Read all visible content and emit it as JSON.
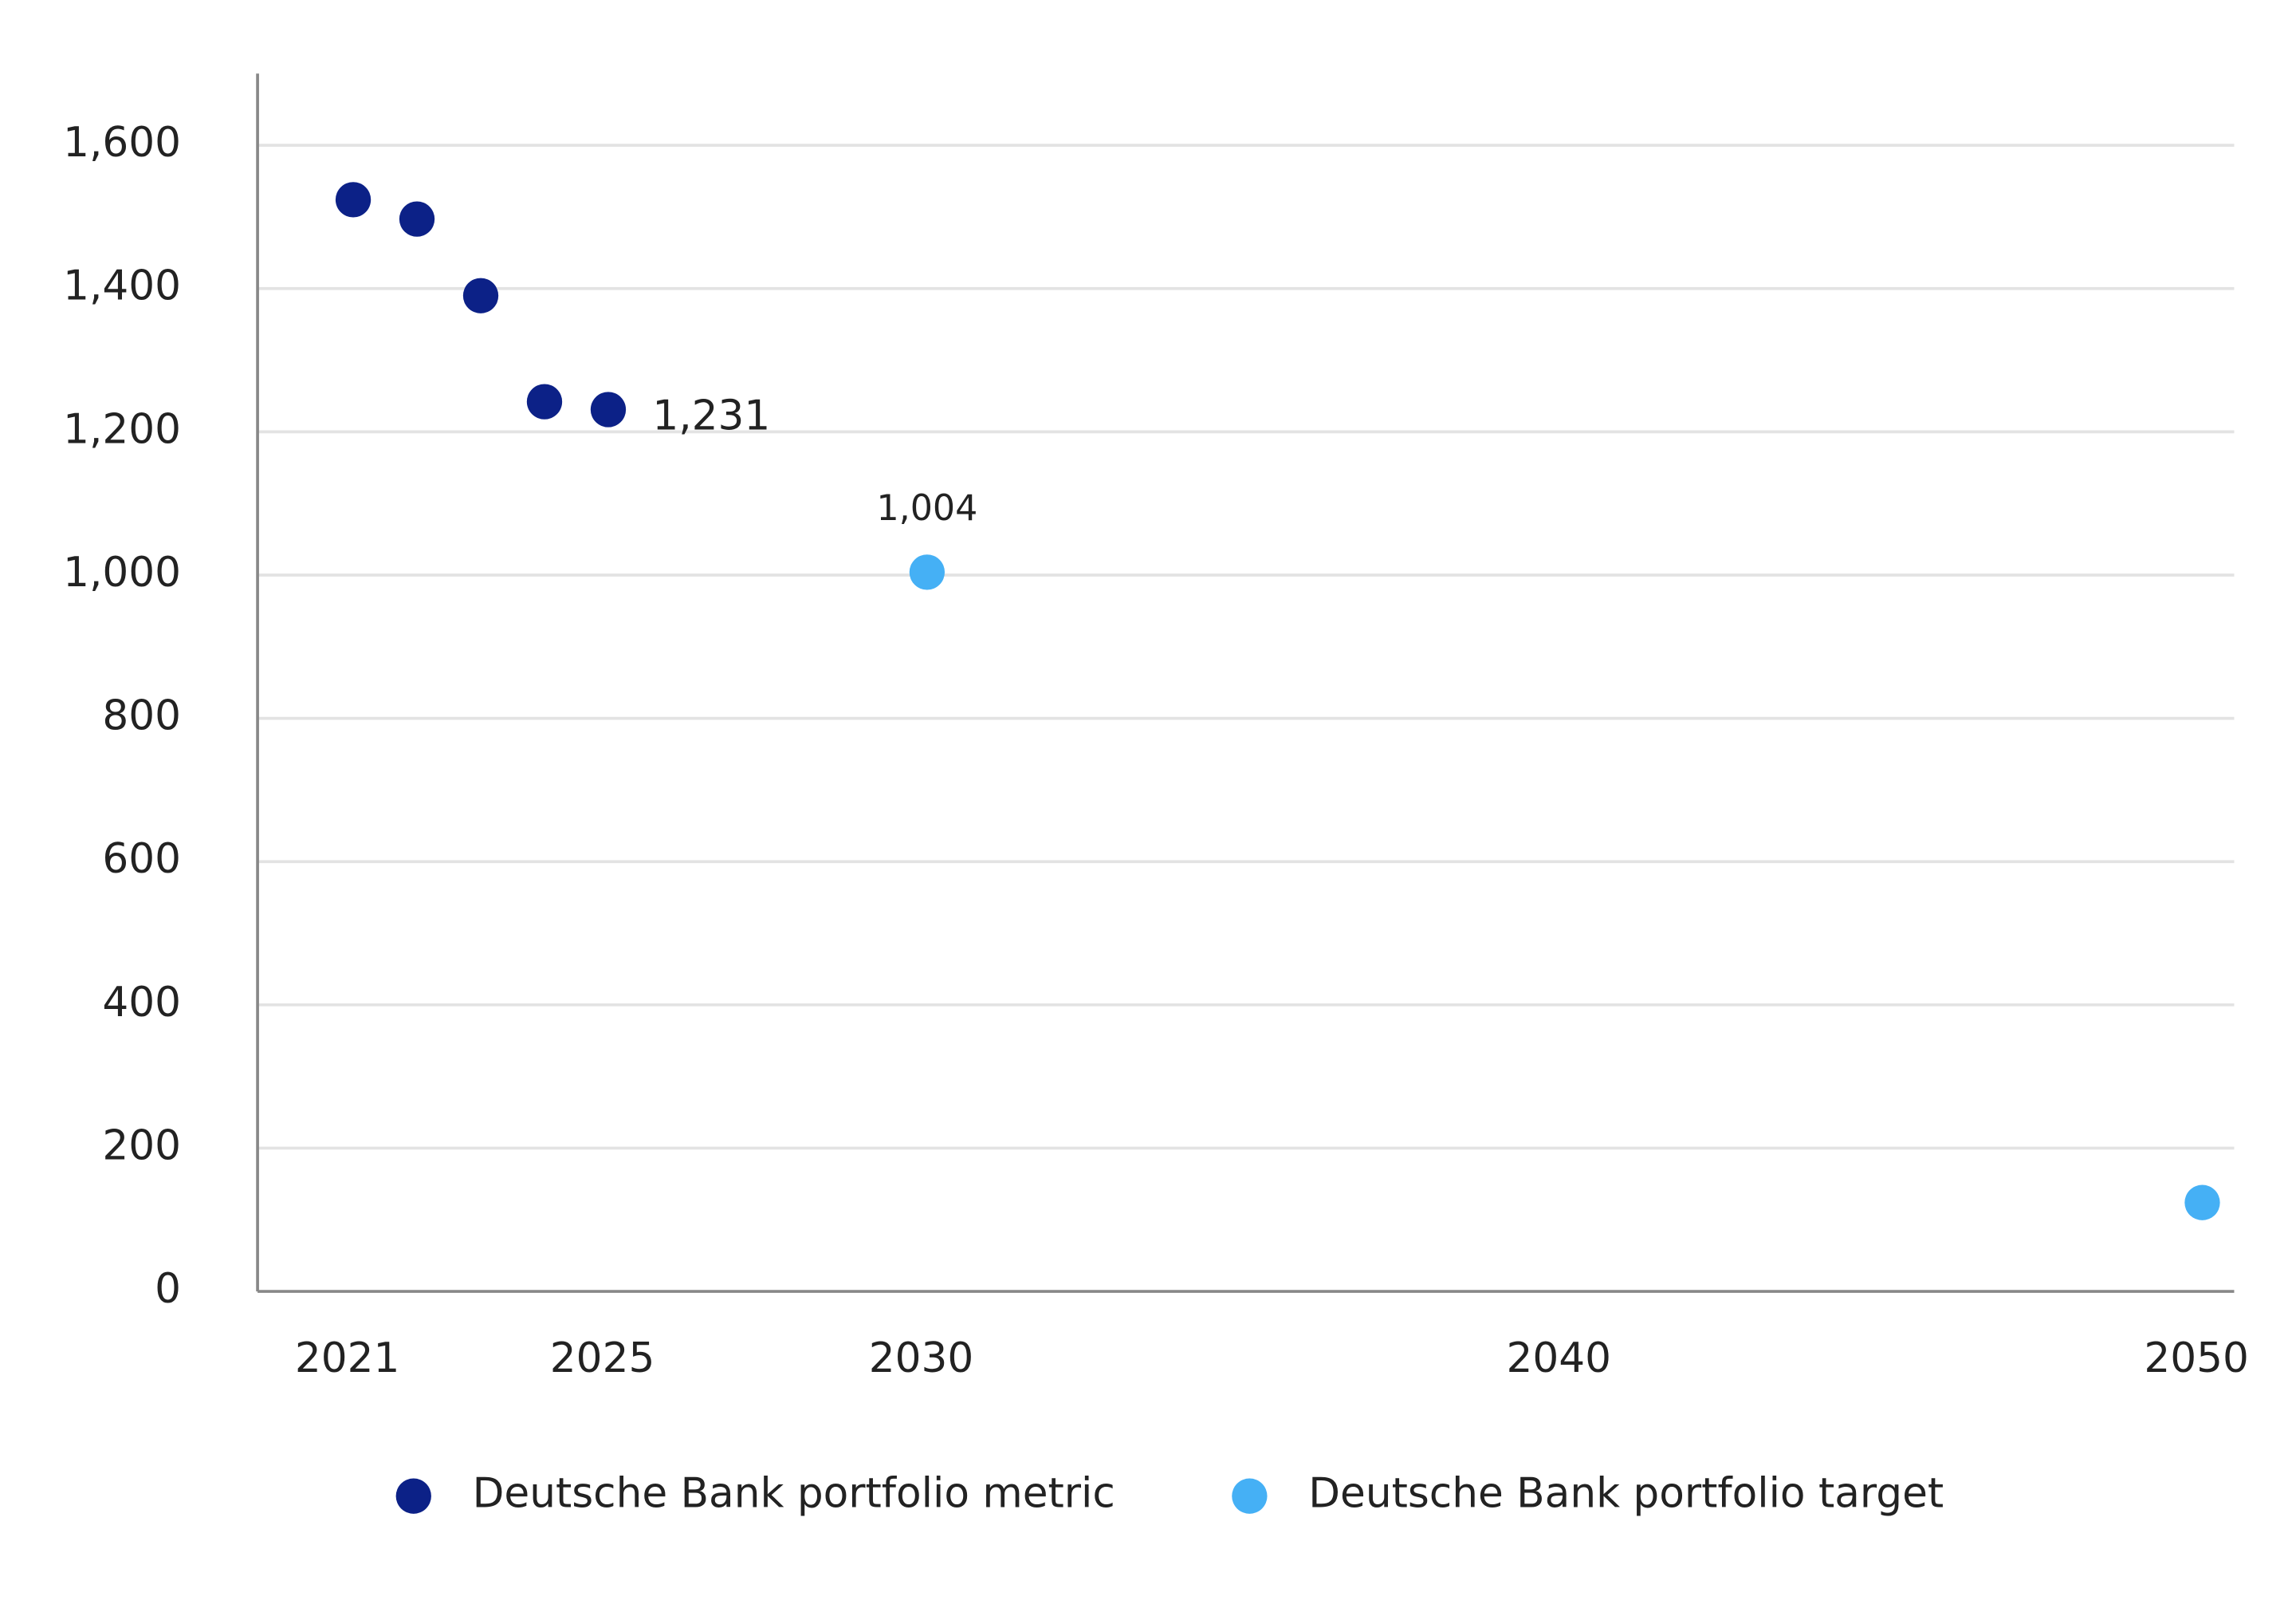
{
  "chart_data": {
    "type": "scatter",
    "series": [
      {
        "name": "Deutsche Bank portfolio metric",
        "color": "#0c2187",
        "x": [
          2021,
          2022,
          2023,
          2024,
          2025
        ],
        "values": [
          1524,
          1497,
          1390,
          1242,
          1231
        ],
        "value_labels": [
          null,
          null,
          null,
          null,
          "1,231"
        ]
      },
      {
        "name": "Deutsche Bank portfolio target",
        "color": "#45b0f5",
        "x": [
          2030,
          2050
        ],
        "values": [
          1004,
          124
        ],
        "value_labels": [
          "1,004",
          null
        ]
      }
    ],
    "xlim": [
      2019.5,
      2050.5
    ],
    "xticks": [
      2021,
      2025,
      2030,
      2040,
      2050
    ],
    "ylim": [
      0,
      1700
    ],
    "yticks": [
      0,
      200,
      400,
      600,
      800,
      {
        "value": 1000,
        "label": "1,000"
      },
      {
        "value": 1200,
        "label": "1,200"
      },
      {
        "value": 1400,
        "label": "1,400"
      },
      {
        "value": 1600,
        "label": "1,600"
      }
    ],
    "grid": true,
    "legend": "bottom"
  }
}
